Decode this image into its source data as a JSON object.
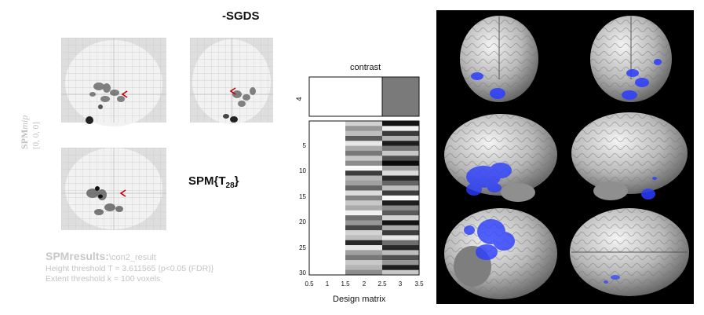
{
  "title": "-SGDS",
  "mip": {
    "label_prefix": "SPM",
    "label_suffix": "mip",
    "coords": "[0, 0, 0]"
  },
  "stat": {
    "prefix": "SPM{T",
    "subscript": "28",
    "suffix": "}"
  },
  "results": {
    "header": "SPMresults:",
    "path": "\\con2_result",
    "height_threshold": "Height threshold T = 3.611565  {p<0.05 (FDR)}",
    "extent_threshold": "Extent threshold k = 100 voxels"
  },
  "contrast": {
    "label": "contrast",
    "row_label": "4"
  },
  "design_matrix": {
    "xlabel": "Design matrix",
    "x_ticks": [
      "0.5",
      "1",
      "1.5",
      "2",
      "2.5",
      "3",
      "3.5"
    ],
    "y_ticks": [
      "5",
      "10",
      "15",
      "20",
      "25",
      "30"
    ]
  },
  "colors": {
    "activation": "#2b3dff",
    "mip_glass": "#e2e2e2",
    "contrast_bar": "#7a7a7a"
  }
}
